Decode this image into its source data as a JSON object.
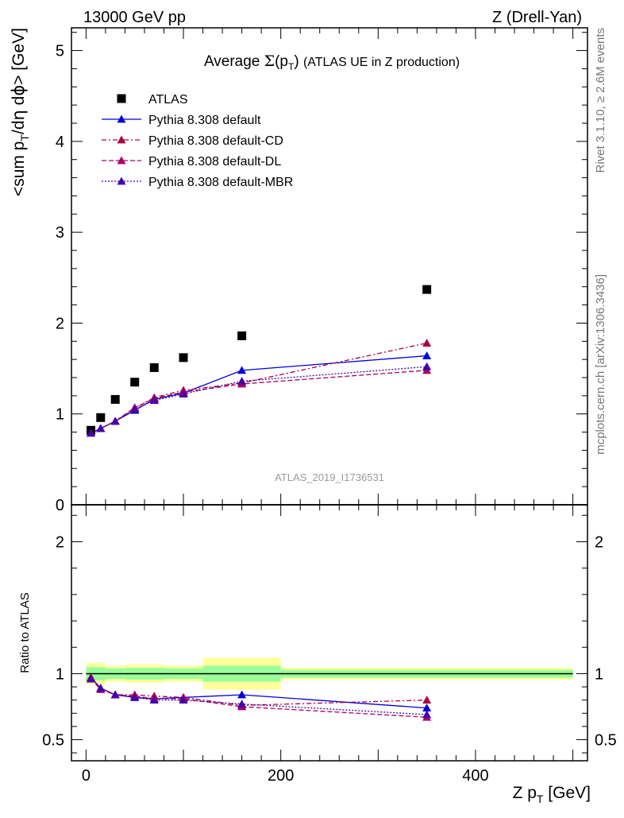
{
  "header": {
    "left": "13000 GeV pp",
    "right": "Z (Drell-Yan)"
  },
  "side": {
    "rivet": "Rivet 3.1.10, ≥ 2.6M events",
    "mcplots": "mcplots.cern.ch [arXiv:1306.3436]"
  },
  "chart_data": [
    {
      "type": "scatter",
      "title": "Average Σ(p_T) (ATLAS UE in Z production)",
      "watermark": "ATLAS_2019_I1736531",
      "ylabel": "<sum p_T/dη dϕ> [GeV]",
      "xlim": [
        -15,
        515
      ],
      "ylim": [
        0,
        5.25
      ],
      "y_ticks": [
        {
          "value": 0,
          "label": "0"
        },
        {
          "value": 1,
          "label": "1"
        },
        {
          "value": 2,
          "label": "2"
        },
        {
          "value": 3,
          "label": "3"
        },
        {
          "value": 4,
          "label": "4"
        },
        {
          "value": 5,
          "label": "5"
        }
      ],
      "legend_placement": "top-left",
      "x": [
        5,
        15,
        30,
        50,
        70,
        100,
        160,
        350
      ],
      "series": [
        {
          "name": "ATLAS",
          "color": "#000000",
          "marker": "square",
          "line": "none",
          "values": [
            0.82,
            0.96,
            1.16,
            1.35,
            1.51,
            1.62,
            1.86,
            2.37
          ]
        },
        {
          "name": "Pythia 8.308 default",
          "color": "#0000dd",
          "marker": "triangle",
          "line": "solid",
          "values": [
            0.79,
            0.84,
            0.92,
            1.04,
            1.16,
            1.23,
            1.48,
            1.64
          ]
        },
        {
          "name": "Pythia 8.308 default-CD",
          "color": "#aa0044",
          "marker": "triangle",
          "line": "dashdot",
          "values": [
            0.79,
            0.84,
            0.92,
            1.06,
            1.18,
            1.26,
            1.34,
            1.78
          ]
        },
        {
          "name": "Pythia 8.308 default-DL",
          "color": "#aa0066",
          "marker": "triangle",
          "line": "dashed",
          "values": [
            0.79,
            0.84,
            0.92,
            1.07,
            1.17,
            1.24,
            1.33,
            1.48
          ]
        },
        {
          "name": "Pythia 8.308 default-MBR",
          "color": "#4400aa",
          "marker": "triangle",
          "line": "dotted",
          "values": [
            0.79,
            0.84,
            0.92,
            1.05,
            1.15,
            1.22,
            1.36,
            1.52
          ]
        }
      ]
    },
    {
      "type": "scatter",
      "ylabel": "Ratio to ATLAS",
      "xlabel": "Z p_T [GeV]",
      "xlim": [
        -15,
        515
      ],
      "ylim": [
        0.34,
        2.28
      ],
      "y_ticks": [
        {
          "value": 0.5,
          "label": "0.5"
        },
        {
          "value": 1,
          "label": "1"
        },
        {
          "value": 2,
          "label": "2"
        }
      ],
      "x_ticks": [
        {
          "value": 0,
          "label": "0"
        },
        {
          "value": 200,
          "label": "200"
        },
        {
          "value": 400,
          "label": "400"
        }
      ],
      "reference_line": 1,
      "uncertainty_bands": [
        {
          "x": [
            0,
            20
          ],
          "yellow": [
            0.92,
            1.08
          ],
          "green": [
            0.95,
            1.05
          ]
        },
        {
          "x": [
            20,
            40
          ],
          "yellow": [
            0.94,
            1.06
          ],
          "green": [
            0.96,
            1.04
          ]
        },
        {
          "x": [
            40,
            80
          ],
          "yellow": [
            0.93,
            1.07
          ],
          "green": [
            0.955,
            1.045
          ]
        },
        {
          "x": [
            80,
            120
          ],
          "yellow": [
            0.94,
            1.06
          ],
          "green": [
            0.96,
            1.04
          ]
        },
        {
          "x": [
            120,
            200
          ],
          "yellow": [
            0.88,
            1.12
          ],
          "green": [
            0.94,
            1.06
          ]
        },
        {
          "x": [
            200,
            500
          ],
          "yellow": [
            0.955,
            1.045
          ],
          "green": [
            0.97,
            1.03
          ]
        }
      ],
      "x": [
        5,
        15,
        30,
        50,
        70,
        100,
        160,
        350
      ],
      "series": [
        {
          "name": "Pythia 8.308 default",
          "color": "#0000dd",
          "line": "solid",
          "values": [
            0.97,
            0.89,
            0.84,
            0.82,
            0.81,
            0.82,
            0.84,
            0.74
          ]
        },
        {
          "name": "Pythia 8.308 default-CD",
          "color": "#aa0044",
          "line": "dashdot",
          "values": [
            0.97,
            0.89,
            0.84,
            0.84,
            0.83,
            0.82,
            0.76,
            0.8
          ]
        },
        {
          "name": "Pythia 8.308 default-DL",
          "color": "#aa0066",
          "line": "dashed",
          "values": [
            0.96,
            0.88,
            0.84,
            0.83,
            0.81,
            0.81,
            0.75,
            0.67
          ]
        },
        {
          "name": "Pythia 8.308 default-MBR",
          "color": "#4400aa",
          "line": "dotted",
          "values": [
            0.96,
            0.89,
            0.84,
            0.82,
            0.8,
            0.8,
            0.77,
            0.69
          ]
        }
      ]
    }
  ]
}
